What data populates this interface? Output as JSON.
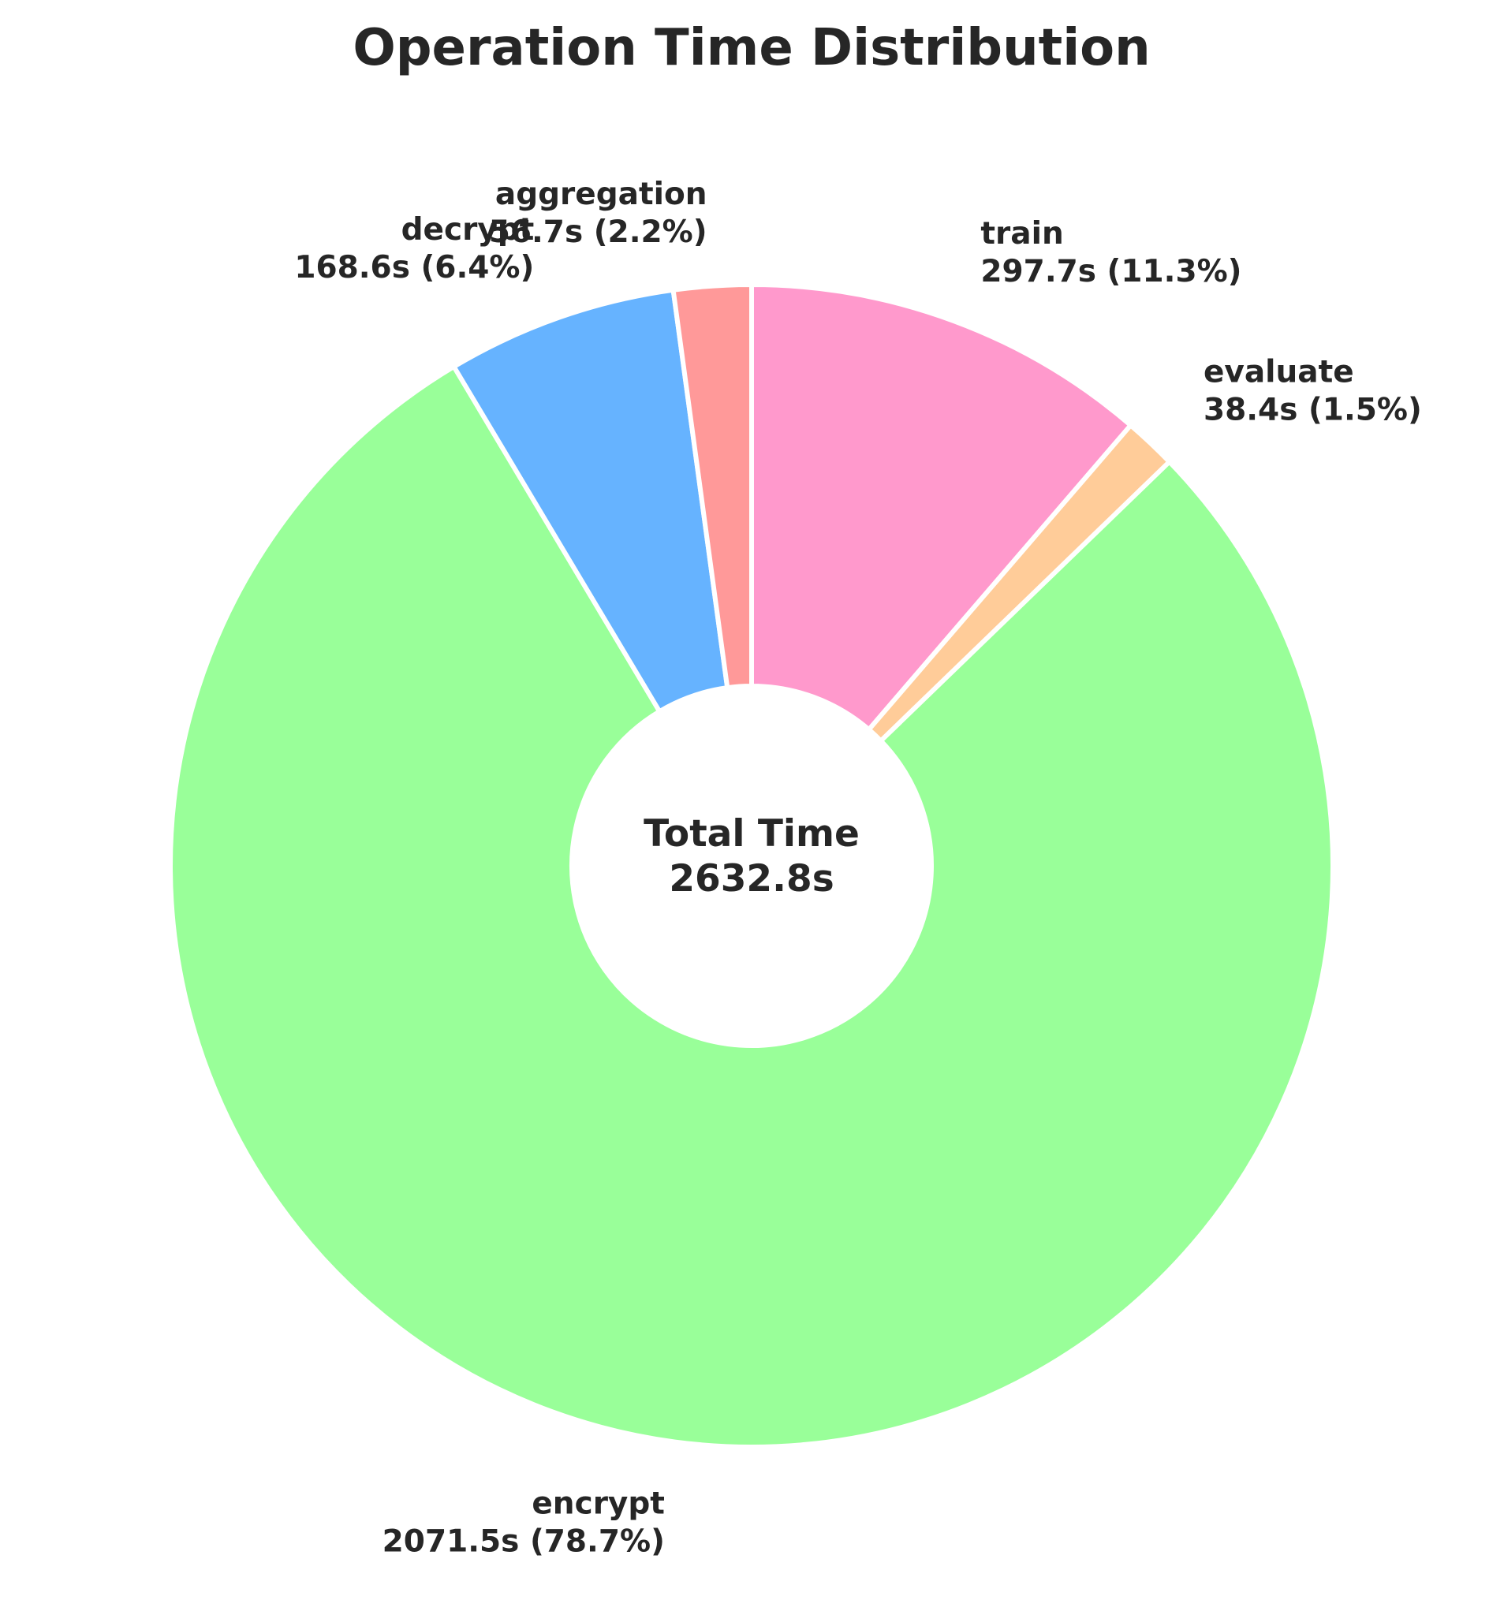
{
  "chart_data": {
    "type": "pie",
    "title": "Operation Time Distribution",
    "center_label": {
      "line1": "Total Time",
      "line2": "2632.8s"
    },
    "unit": "s",
    "total": 2632.8,
    "start_angle_deg": 90,
    "direction": "clockwise",
    "wedge_edge_color": "#ffffff",
    "slices": [
      {
        "label": "train",
        "value": 297.7,
        "percent": 11.3,
        "color": "#ff99cc",
        "text": "297.7s (11.3%)",
        "label_side": "right"
      },
      {
        "label": "evaluate",
        "value": 38.4,
        "percent": 1.5,
        "color": "#ffcc99",
        "text": "38.4s (1.5%)",
        "label_side": "right"
      },
      {
        "label": "encrypt",
        "value": 2071.5,
        "percent": 78.7,
        "color": "#99ff99",
        "text": "2071.5s (78.7%)",
        "label_side": "left"
      },
      {
        "label": "decrypt",
        "value": 168.6,
        "percent": 6.4,
        "color": "#66b3ff",
        "text": "168.6s (6.4%)",
        "label_side": "left"
      },
      {
        "label": "aggregation",
        "value": 56.7,
        "percent": 2.2,
        "color": "#ff9999",
        "text": "56.7s (2.2%)",
        "label_side": "left"
      }
    ]
  }
}
